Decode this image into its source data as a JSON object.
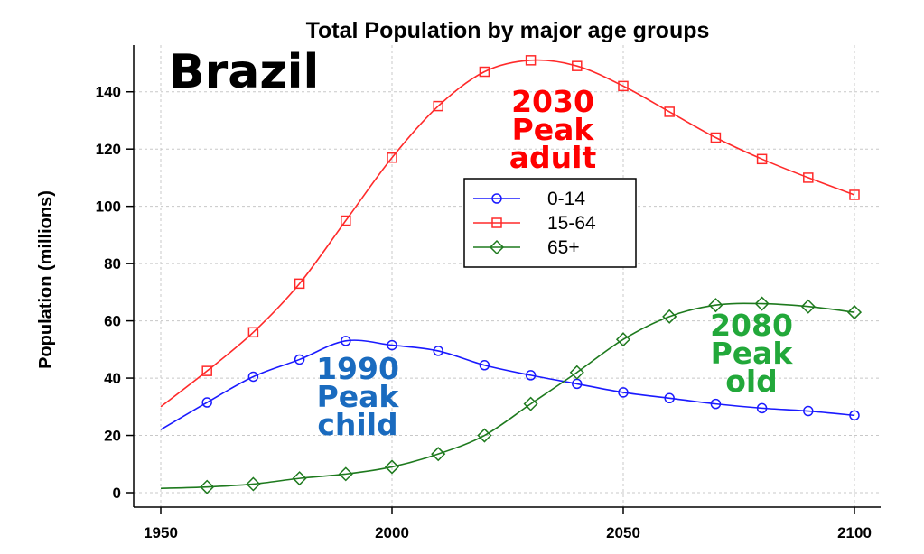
{
  "chart_data": {
    "type": "line",
    "title": "Total Population by major age groups",
    "country_label": "Brazil",
    "ylabel": "Population (millions)",
    "xlabel": "",
    "xlim": [
      1950,
      2100
    ],
    "ylim": [
      0,
      150
    ],
    "x_ticks": [
      "1950",
      "2000",
      "2050",
      "2100"
    ],
    "y_ticks": [
      "0",
      "20",
      "40",
      "60",
      "80",
      "100",
      "120",
      "140"
    ],
    "grid": true,
    "legend_position": "center",
    "series": [
      {
        "name": "0-14",
        "color": "#1a1aff",
        "marker": "circle",
        "x": [
          1950,
          1960,
          1970,
          1980,
          1990,
          2000,
          2010,
          2020,
          2030,
          2040,
          2050,
          2060,
          2070,
          2080,
          2090,
          2100
        ],
        "y": [
          22.0,
          31.5,
          40.5,
          46.5,
          53.0,
          51.5,
          49.5,
          44.5,
          41.0,
          38.0,
          35.0,
          33.0,
          31.0,
          29.5,
          28.5,
          27.0
        ]
      },
      {
        "name": "15-64",
        "color": "#ff2a2a",
        "marker": "square",
        "x": [
          1950,
          1960,
          1970,
          1980,
          1990,
          2000,
          2010,
          2020,
          2030,
          2040,
          2050,
          2060,
          2070,
          2080,
          2090,
          2100
        ],
        "y": [
          30.0,
          42.5,
          56.0,
          73.0,
          95.0,
          117.0,
          135.0,
          147.0,
          151.0,
          149.0,
          142.0,
          133.0,
          124.0,
          116.5,
          110.0,
          104.0
        ]
      },
      {
        "name": "65+",
        "color": "#1e7a1e",
        "marker": "diamond",
        "x": [
          1950,
          1960,
          1970,
          1980,
          1990,
          2000,
          2010,
          2020,
          2030,
          2040,
          2050,
          2060,
          2070,
          2080,
          2090,
          2100
        ],
        "y": [
          1.5,
          2.0,
          3.0,
          5.0,
          6.5,
          9.0,
          13.5,
          20.0,
          31.0,
          42.0,
          53.5,
          61.5,
          65.5,
          66.0,
          65.0,
          63.0
        ]
      }
    ],
    "annotations": [
      {
        "lines": [
          "2030",
          "Peak",
          "adult"
        ],
        "color": "#ff0000"
      },
      {
        "lines": [
          "1990",
          "Peak",
          "child"
        ],
        "color": "#1a6bbf"
      },
      {
        "lines": [
          "2080",
          "Peak",
          "old"
        ],
        "color": "#22a83a"
      }
    ]
  }
}
